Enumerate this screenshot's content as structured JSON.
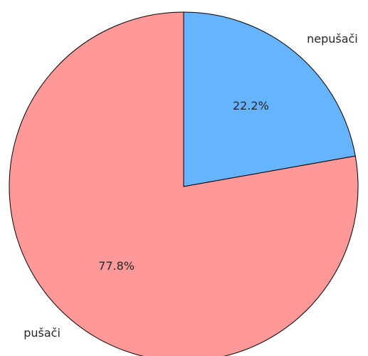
{
  "chart_data": {
    "type": "pie",
    "categories": [
      "nepušači",
      "pušači"
    ],
    "values": [
      22.2,
      77.8
    ],
    "value_labels": [
      "22.2%",
      "77.8%"
    ],
    "colors": [
      "#66b3ff",
      "#ff9999"
    ]
  }
}
